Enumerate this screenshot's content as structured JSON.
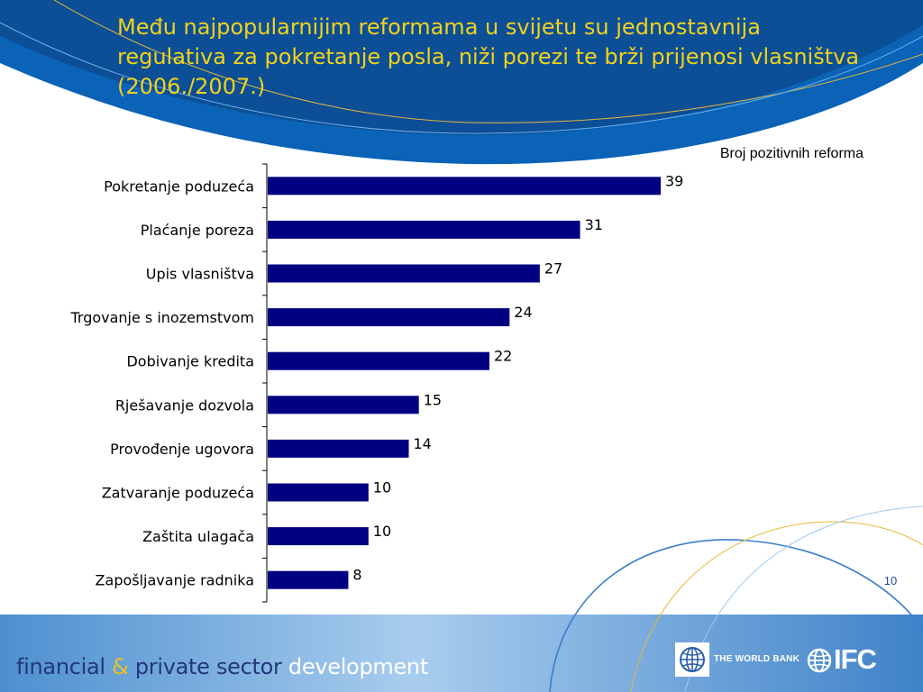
{
  "slide": {
    "title": "Među najpopularnijim reformama u svijetu su jednostavnija regulativa za pokretanje posla, niži porezi te brži prijenosi vlasništva (2006./2007.)",
    "number": "10"
  },
  "footer": {
    "part1": "financial ",
    "amp": "&",
    "part2": " private sector ",
    "part3": "development",
    "worldbank": "THE WORLD BANK",
    "ifc": "IFC"
  },
  "colors": {
    "bar": "#000080",
    "title": "#f2d21a",
    "background_blue": "#0a63b7",
    "footer_blue": "#6fa6d8"
  },
  "chart_data": {
    "type": "bar",
    "orientation": "horizontal",
    "subtitle": "Broj pozitivnih reforma",
    "categories": [
      "Pokretanje poduzeća",
      "Plaćanje poreza",
      "Upis vlasništva",
      "Trgovanje s inozemstvom",
      "Dobivanje kredita",
      "Rješavanje dozvola",
      "Provođenje ugovora",
      "Zatvaranje poduzeća",
      "Zaštita ulagača",
      "Zapošljavanje radnika"
    ],
    "values": [
      39,
      31,
      27,
      24,
      22,
      15,
      14,
      10,
      10,
      8
    ],
    "xlim": [
      0,
      40
    ],
    "grid": false,
    "legend": "none"
  }
}
